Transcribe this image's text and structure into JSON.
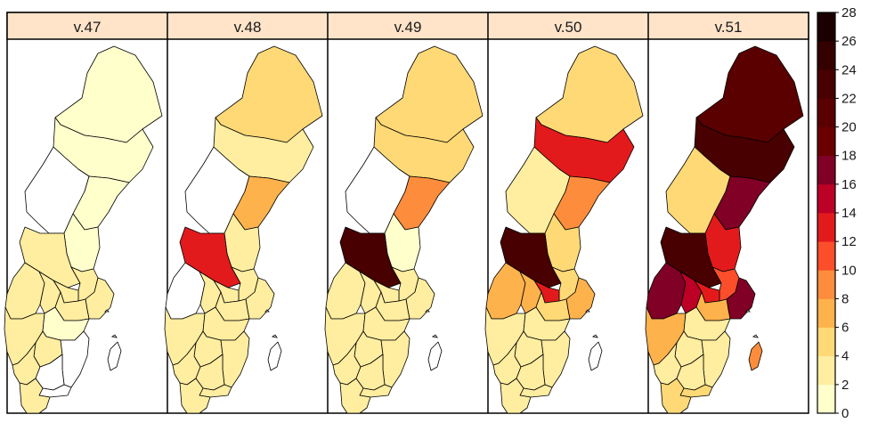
{
  "panels": [
    {
      "label": "v.47"
    },
    {
      "label": "v.48"
    },
    {
      "label": "v.49"
    },
    {
      "label": "v.50"
    },
    {
      "label": "v.51"
    }
  ],
  "legend": {
    "ticks": [
      "0",
      "2",
      "4",
      "6",
      "8",
      "10",
      "12",
      "14",
      "16",
      "18",
      "20",
      "22",
      "24",
      "26",
      "28"
    ],
    "colors": [
      "#ffffcc",
      "#ffeda0",
      "#fed976",
      "#feb24c",
      "#fd8d3c",
      "#fc4e2a",
      "#e31a1c",
      "#bd0026",
      "#800026",
      "#6b0000",
      "#5a0000",
      "#480000",
      "#340000",
      "#1a0000"
    ]
  },
  "regions": [
    "Norrbotten",
    "Västerbotten",
    "Jämtland",
    "Västernorrland",
    "Gävleborg",
    "Dalarna",
    "Värmland",
    "Uppsala",
    "Västmanland",
    "Örebro",
    "Stockholm",
    "Södermanland",
    "Västra Götaland",
    "Östergötland",
    "Jönköping",
    "Kalmar",
    "Halland",
    "Kronoberg",
    "Blekinge",
    "Skåne",
    "Gotland"
  ],
  "values": {
    "v.47": {
      "Norrbotten": 1,
      "Västerbotten": 1,
      "Jämtland": null,
      "Västernorrland": 1,
      "Gävleborg": 1,
      "Dalarna": 3,
      "Värmland": 2,
      "Uppsala": 2,
      "Västmanland": 2,
      "Örebro": 2,
      "Stockholm": 2,
      "Södermanland": 2,
      "Västra Götaland": 2,
      "Östergötland": 1,
      "Jönköping": 2,
      "Kalmar": null,
      "Halland": 2,
      "Kronoberg": null,
      "Blekinge": null,
      "Skåne": 3,
      "Gotland": null
    },
    "v.48": {
      "Norrbotten": 5,
      "Västerbotten": 3,
      "Jämtland": null,
      "Västernorrland": 7,
      "Gävleborg": 2,
      "Dalarna": 13,
      "Värmland": null,
      "Uppsala": 2,
      "Västmanland": 2,
      "Örebro": 2,
      "Stockholm": 2,
      "Södermanland": 2,
      "Västra Götaland": 2,
      "Östergötland": 2,
      "Jönköping": 2,
      "Kalmar": 2,
      "Halland": 2,
      "Kronoberg": 2,
      "Blekinge": 2,
      "Skåne": 3,
      "Gotland": null
    },
    "v.49": {
      "Norrbotten": 5,
      "Västerbotten": 5,
      "Jämtland": null,
      "Västernorrland": 8,
      "Gävleborg": 1,
      "Dalarna": 23,
      "Värmland": 3,
      "Uppsala": 3,
      "Västmanland": 3,
      "Örebro": 3,
      "Stockholm": 3,
      "Södermanland": 2,
      "Västra Götaland": 2,
      "Östergötland": 2,
      "Jönköping": 2,
      "Kalmar": 2,
      "Halland": 2,
      "Kronoberg": 2,
      "Blekinge": 2,
      "Skåne": 2,
      "Gotland": null
    },
    "v.50": {
      "Norrbotten": 5,
      "Västerbotten": 12,
      "Jämtland": 3,
      "Västernorrland": 8,
      "Gävleborg": 4,
      "Dalarna": 23,
      "Värmland": 7,
      "Uppsala": 5,
      "Västmanland": 12,
      "Örebro": 7,
      "Stockholm": 6,
      "Södermanland": 5,
      "Västra Götaland": 3,
      "Östergötland": 3,
      "Jönköping": 2,
      "Kalmar": 2,
      "Halland": 3,
      "Kronoberg": 2,
      "Blekinge": 2,
      "Skåne": 3,
      "Gotland": null
    },
    "v.51": {
      "Norrbotten": 20,
      "Västerbotten": 22,
      "Jämtland": 5,
      "Västernorrland": 17,
      "Gävleborg": 12,
      "Dalarna": 23,
      "Värmland": 17,
      "Uppsala": 11,
      "Västmanland": 12,
      "Örebro": 14,
      "Stockholm": 17,
      "Södermanland": 7,
      "Västra Götaland": 7,
      "Östergötland": 3,
      "Jönköping": 3,
      "Kalmar": 3,
      "Halland": 3,
      "Kronoberg": 3,
      "Blekinge": 5,
      "Skåne": 4,
      "Gotland": 8
    }
  }
}
